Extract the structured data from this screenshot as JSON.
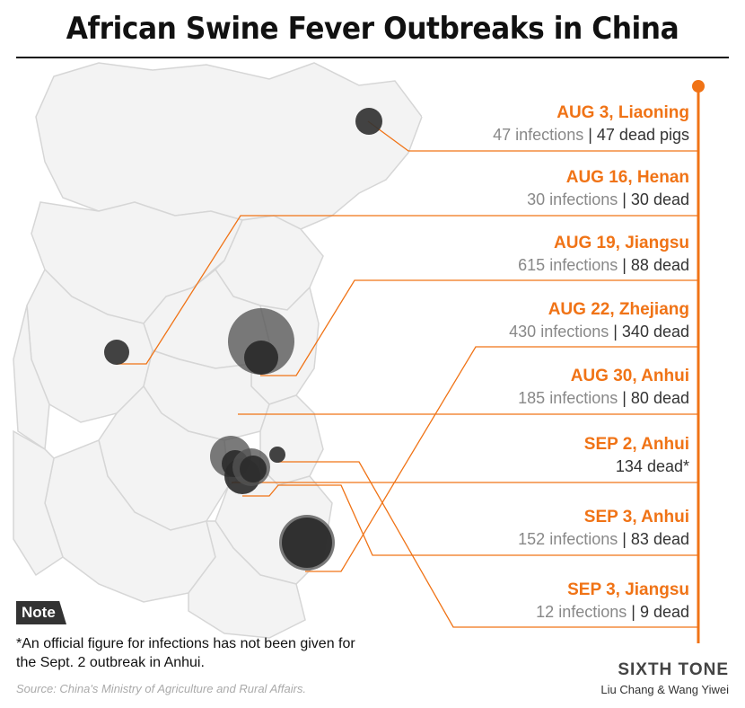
{
  "title": "African Swine Fever Outbreaks in China",
  "events": [
    {
      "date": "AUG 3, Liaoning",
      "infections": "47 infections",
      "dead": "47 dead pigs"
    },
    {
      "date": "AUG 16, Henan",
      "infections": "30 infections",
      "dead": "30 dead"
    },
    {
      "date": "AUG 19, Jiangsu",
      "infections": "615 infections",
      "dead": "88 dead"
    },
    {
      "date": "AUG 22, Zhejiang",
      "infections": "430 infections",
      "dead": "340 dead"
    },
    {
      "date": "AUG 30, Anhui",
      "infections": "185 infections",
      "dead": "80 dead"
    },
    {
      "date": "SEP 2, Anhui",
      "infections": "",
      "dead": "134 dead*"
    },
    {
      "date": "SEP 3, Anhui",
      "infections": "152 infections",
      "dead": "83 dead"
    },
    {
      "date": "SEP 3, Jiangsu",
      "infections": "12 infections",
      "dead": "9 dead"
    }
  ],
  "note": {
    "label": "Note",
    "text": "*An official figure for infections has not been given for the Sept. 2 outbreak in Anhui."
  },
  "source": "Source: China's Ministry of Agriculture and Rural Affairs.",
  "brand": "SIXTH TONE",
  "credit": "Liu Chang & Wang Yiwei",
  "colors": {
    "accent": "#f07316",
    "bubble": "#333333",
    "map_border": "#dcdcdc"
  }
}
